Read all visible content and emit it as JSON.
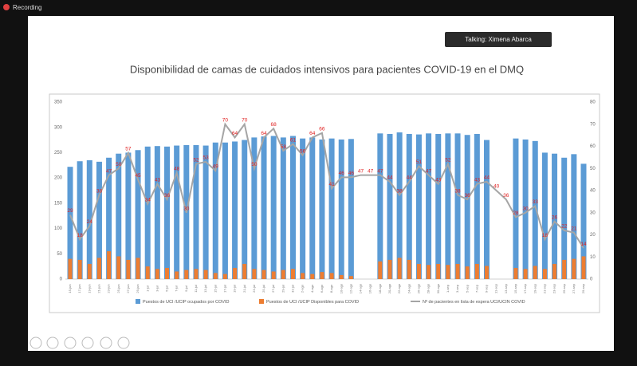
{
  "recording_label": "Recording",
  "talking_label": "Talking: Ximena Abarca",
  "chart_data": {
    "type": "bar",
    "title": "Disponibilidad de camas de cuidados intensivos para pacientes COVID-19 en el DMQ",
    "categories": [
      "15-jun",
      "17-jun",
      "19-jun",
      "21-jun",
      "23-jun",
      "25-jun",
      "27-jun",
      "29-jun",
      "1-jul",
      "3-jul",
      "5-jul",
      "7-jul",
      "9-jul",
      "11-jul",
      "13-jul",
      "15-jul",
      "17-jul",
      "19-jul",
      "21-jul",
      "23-jul",
      "25-jul",
      "27-jul",
      "29-jul",
      "31-jul",
      "2-ago",
      "4-ago",
      "6-ago",
      "8-ago",
      "10-ago",
      "12-ago",
      "14-ago",
      "16-ago",
      "18-ago",
      "20-ago",
      "22-ago",
      "24-ago",
      "26-ago",
      "28-ago",
      "30-ago",
      "1-sep",
      "3-sep",
      "5-sep",
      "7-sep",
      "9-sep",
      "11-sep",
      "13-sep",
      "15-sep",
      "17-sep",
      "19-sep",
      "21-sep",
      "23-sep",
      "25-sep",
      "27-sep",
      "29-sep"
    ],
    "series": [
      {
        "name": "Puestos de UCI /UCIP ocupados por COVID",
        "type": "bar",
        "color": "#5b9bd5",
        "values": [
          222,
          233,
          235,
          232,
          240,
          248,
          250,
          255,
          262,
          263,
          262,
          264,
          265,
          265,
          264,
          270,
          270,
          272,
          275,
          280,
          282,
          283,
          280,
          283,
          278,
          280,
          276,
          278,
          276,
          277,
          null,
          null,
          288,
          287,
          290,
          287,
          286,
          288,
          287,
          288,
          288,
          285,
          287,
          275,
          null,
          null,
          278,
          276,
          273,
          250,
          248,
          240,
          247,
          228
        ]
      },
      {
        "name": "Puestos de UCI /UCIP Disponibles para COVID",
        "type": "bar",
        "color": "#ed7d31",
        "values": [
          40,
          38,
          30,
          42,
          55,
          45,
          38,
          42,
          25,
          20,
          22,
          15,
          18,
          20,
          18,
          12,
          10,
          22,
          30,
          20,
          18,
          15,
          18,
          20,
          12,
          10,
          14,
          12,
          8,
          6,
          null,
          null,
          35,
          38,
          42,
          38,
          30,
          28,
          30,
          28,
          30,
          25,
          30,
          26,
          null,
          null,
          22,
          20,
          26,
          20,
          30,
          38,
          40,
          45
        ]
      },
      {
        "name": "Nº de pacientes en lista de espera UCI/UCIN COVID",
        "type": "line",
        "axis": "y2",
        "color": "#a5a5a5",
        "label_color": "#e02020",
        "values": [
          29,
          18,
          24,
          38,
          47,
          50,
          57,
          45,
          34,
          43,
          36,
          48,
          30,
          52,
          53,
          49,
          70,
          64,
          70,
          50,
          64,
          68,
          58,
          61,
          56,
          64,
          66,
          41,
          46,
          46,
          47,
          47,
          47,
          44,
          38,
          44,
          51,
          47,
          43,
          52,
          38,
          36,
          43,
          44,
          40,
          36,
          28,
          30,
          33,
          18,
          26,
          22,
          21,
          14
        ]
      }
    ],
    "ylim": [
      0,
      350
    ],
    "yticks": [
      0,
      50,
      100,
      150,
      200,
      250,
      300,
      350
    ],
    "y2lim": [
      0,
      80
    ],
    "y2ticks": [
      0,
      10,
      20,
      30,
      40,
      50,
      60,
      70,
      80
    ],
    "grid": false,
    "legend": "bottom"
  }
}
